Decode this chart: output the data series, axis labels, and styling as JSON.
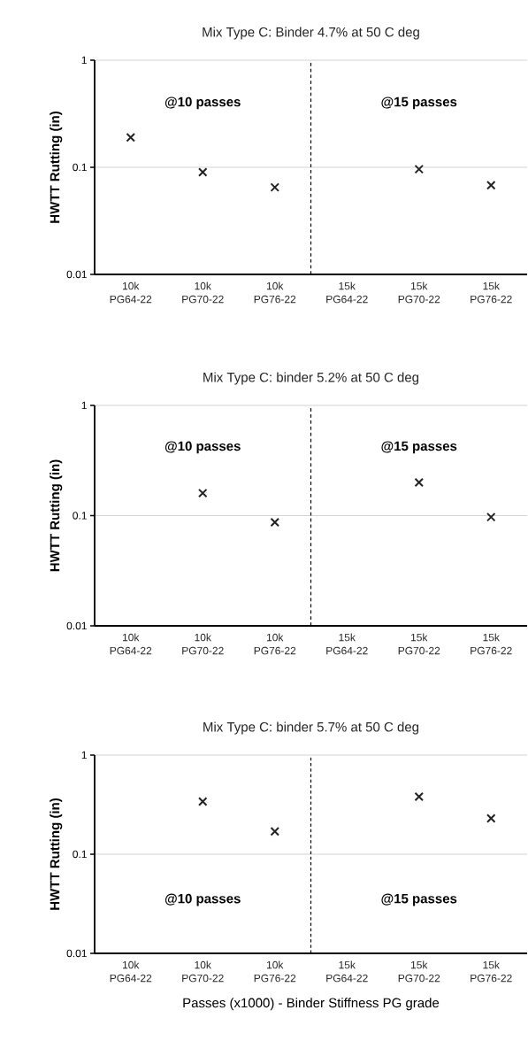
{
  "chart_data": [
    {
      "type": "scatter",
      "title": "Mix Type C: Binder 4.7% at 50 C deg",
      "ylabel": "HWTT Rutting (in)",
      "categories": [
        "10k PG64-22",
        "10k PG70-22",
        "10k PG76-22",
        "15k PG64-22",
        "15k PG70-22",
        "15k PG76-22"
      ],
      "series": [
        {
          "color": "#222222",
          "values": [
            0.19,
            0.09,
            0.065,
            null,
            0.096,
            0.068
          ]
        }
      ],
      "ylim": [
        0.01,
        1
      ],
      "yticks": [
        0.01,
        0.1,
        1
      ],
      "log": "y",
      "grid": "y",
      "marker": "cross",
      "annotations": [
        "@10 passes",
        "@15 passes"
      ]
    },
    {
      "type": "scatter",
      "title": "Mix Type C: binder 5.2% at 50 C deg",
      "ylabel": "HWTT Rutting (in)",
      "categories": [
        "10k PG64-22",
        "10k PG70-22",
        "10k PG76-22",
        "15k PG64-22",
        "15k PG70-22",
        "15k PG76-22"
      ],
      "series": [
        {
          "color": "#222222",
          "values": [
            null,
            0.16,
            0.087,
            null,
            0.2,
            0.097
          ]
        }
      ],
      "ylim": [
        0.01,
        1
      ],
      "yticks": [
        0.01,
        0.1,
        1
      ],
      "log": "y",
      "grid": "y",
      "marker": "cross",
      "annotations": [
        "@10 passes",
        "@15 passes"
      ]
    },
    {
      "type": "scatter",
      "title": "Mix Type C: binder 5.7% at 50 C deg",
      "ylabel": "HWTT Rutting (in)",
      "xlabel": "Passes (x1000) - Binder Stiffness PG grade",
      "categories": [
        "10k PG64-22",
        "10k PG70-22",
        "10k PG76-22",
        "15k PG64-22",
        "15k PG70-22",
        "15k PG76-22"
      ],
      "series": [
        {
          "color": "#222222",
          "values": [
            null,
            0.34,
            0.17,
            null,
            0.38,
            0.23
          ]
        }
      ],
      "ylim": [
        0.01,
        1
      ],
      "yticks": [
        0.01,
        0.1,
        1
      ],
      "log": "y",
      "grid": "y",
      "marker": "cross",
      "annotations": [
        "@10 passes",
        "@15 passes"
      ]
    }
  ]
}
